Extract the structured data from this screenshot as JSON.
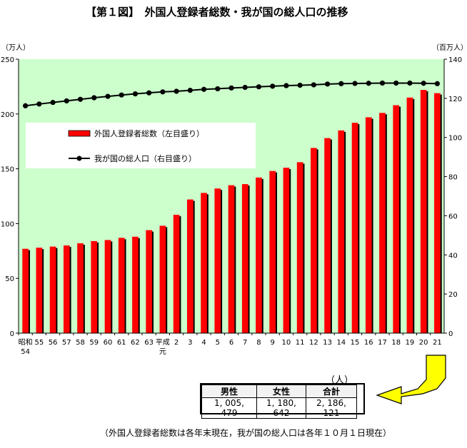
{
  "chart_data": {
    "type": "bar",
    "title": "【第１図】　外国人登録者総数・我が国の総人口の推移",
    "left_axis": {
      "unit": "（万人）",
      "range": [
        0,
        250
      ],
      "ticks": [
        "0",
        "50",
        "100",
        "150",
        "200",
        "250"
      ]
    },
    "right_axis": {
      "unit": "（百万人）",
      "range": [
        0,
        140
      ],
      "ticks": [
        "0",
        "20",
        "40",
        "60",
        "80",
        "100",
        "120",
        "140"
      ]
    },
    "categories": [
      "昭和54",
      "55",
      "56",
      "57",
      "58",
      "59",
      "60",
      "61",
      "62",
      "63",
      "平成元",
      "2",
      "3",
      "4",
      "5",
      "6",
      "7",
      "8",
      "9",
      "10",
      "11",
      "12",
      "13",
      "14",
      "15",
      "16",
      "17",
      "18",
      "19",
      "20",
      "21"
    ],
    "category_labels": [
      [
        "昭和",
        "54"
      ],
      [
        "55"
      ],
      [
        "56"
      ],
      [
        "57"
      ],
      [
        "58"
      ],
      [
        "59"
      ],
      [
        "60"
      ],
      [
        "61"
      ],
      [
        "62"
      ],
      [
        "63"
      ],
      [
        "平成",
        "元"
      ],
      [
        "2"
      ],
      [
        "3"
      ],
      [
        "4"
      ],
      [
        "5"
      ],
      [
        "6"
      ],
      [
        "7"
      ],
      [
        "8"
      ],
      [
        "9"
      ],
      [
        "10"
      ],
      [
        "11"
      ],
      [
        "12"
      ],
      [
        "13"
      ],
      [
        "14"
      ],
      [
        "15"
      ],
      [
        "16"
      ],
      [
        "17"
      ],
      [
        "18"
      ],
      [
        "19"
      ],
      [
        "20"
      ],
      [
        "21"
      ]
    ],
    "series": [
      {
        "name": "外国人登録者総数（左目盛り）",
        "type": "bar",
        "axis": "left",
        "color": "#ff0000",
        "values": [
          77,
          78,
          79,
          80,
          82,
          84,
          85,
          87,
          88,
          94,
          98,
          108,
          122,
          128,
          132,
          135,
          136,
          142,
          148,
          151,
          156,
          169,
          178,
          185,
          192,
          197,
          201,
          208,
          215,
          222,
          219
        ]
      },
      {
        "name": "我が国の総人口（右目盛り）",
        "type": "line",
        "axis": "right",
        "color": "#000000",
        "values": [
          116.2,
          117.1,
          117.9,
          118.7,
          119.5,
          120.3,
          121.0,
          121.7,
          122.3,
          122.8,
          123.3,
          123.6,
          124.1,
          124.6,
          124.9,
          125.3,
          125.6,
          125.9,
          126.2,
          126.5,
          126.7,
          126.9,
          127.3,
          127.5,
          127.6,
          127.7,
          127.8,
          127.8,
          127.8,
          127.7,
          127.5
        ]
      }
    ]
  },
  "table": {
    "unit": "（人）",
    "headers": [
      "男性",
      "女性",
      "合計"
    ],
    "values": [
      "1, 005, 479",
      "1, 180, 642",
      "2, 186, 121"
    ]
  },
  "footnote": "（外国人登録者総数は各年末現在，我が国の総人口は各年１０月１日現在）",
  "colors": {
    "plot_background": "#ccffcc",
    "bar": "#ff0000",
    "arrow_fill": "#ffff00"
  }
}
